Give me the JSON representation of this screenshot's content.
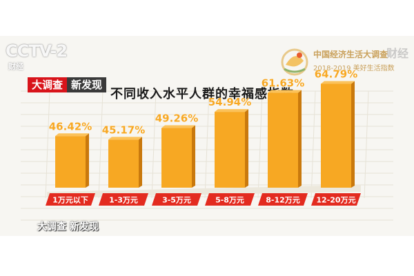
{
  "broadcast": {
    "channel_logo": "CCTV-2",
    "channel_sub": "财经",
    "corner_watermark": "财经",
    "program_badge": "大调查",
    "program_subbadge": "新发现",
    "bottom_logo": "大调查 新发现",
    "event_line1": "中国经济生活大调查",
    "event_line2": "2018-2019 美好生活指数"
  },
  "colors": {
    "bar": "#f7a823",
    "bar_dark": "#c9790d",
    "label": "#f7a823",
    "category_bg": "#e32b1f",
    "badge_red": "#d8141b"
  },
  "chart_data": {
    "type": "bar",
    "title": "不同收入水平人群的幸福感指数",
    "categories": [
      "1万元以下",
      "1-3万元",
      "3-5万元",
      "5-8万元",
      "8-12万元",
      "12-20万元"
    ],
    "values": [
      46.42,
      45.17,
      49.26,
      54.94,
      61.63,
      64.79
    ],
    "value_labels": [
      "46.42%",
      "45.17%",
      "49.26%",
      "54.94%",
      "61.63%",
      "64.79%"
    ],
    "xlabel": "",
    "ylabel": "",
    "grid": true,
    "legend": "none"
  }
}
